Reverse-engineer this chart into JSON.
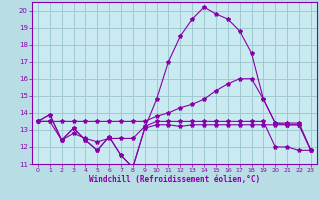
{
  "xlabel": "Windchill (Refroidissement éolien,°C)",
  "xlim": [
    -0.5,
    23.5
  ],
  "ylim": [
    11,
    20.5
  ],
  "yticks": [
    11,
    12,
    13,
    14,
    15,
    16,
    17,
    18,
    19,
    20
  ],
  "xticks": [
    0,
    1,
    2,
    3,
    4,
    5,
    6,
    7,
    8,
    9,
    10,
    11,
    12,
    13,
    14,
    15,
    16,
    17,
    18,
    19,
    20,
    21,
    22,
    23
  ],
  "bg_color": "#b8dde4",
  "plot_bg": "#c8eaf0",
  "grid_color": "#a0c8d0",
  "line_color": "#8800aa",
  "series": [
    [
      13.5,
      13.9,
      12.4,
      13.1,
      12.4,
      11.8,
      12.6,
      11.5,
      10.8,
      13.1,
      13.3,
      13.3,
      13.2,
      13.3,
      13.3,
      13.3,
      13.3,
      13.3,
      13.3,
      13.3,
      13.3,
      13.3,
      13.3,
      11.8
    ],
    [
      13.5,
      13.5,
      13.5,
      13.5,
      13.5,
      13.5,
      13.5,
      13.5,
      13.5,
      13.5,
      13.8,
      14.0,
      14.3,
      14.5,
      14.8,
      15.3,
      15.7,
      16.0,
      16.0,
      14.8,
      13.4,
      13.4,
      13.4,
      11.8
    ],
    [
      13.5,
      13.5,
      12.4,
      12.8,
      12.5,
      12.3,
      12.5,
      12.5,
      12.5,
      13.2,
      13.5,
      13.5,
      13.5,
      13.5,
      13.5,
      13.5,
      13.5,
      13.5,
      13.5,
      13.5,
      12.0,
      12.0,
      11.8,
      11.8
    ],
    [
      13.5,
      13.9,
      12.4,
      13.1,
      12.4,
      11.8,
      12.6,
      11.5,
      10.8,
      13.1,
      14.8,
      17.0,
      18.5,
      19.5,
      20.2,
      19.8,
      19.5,
      18.8,
      17.5,
      14.8,
      13.4,
      13.3,
      13.3,
      11.8
    ]
  ]
}
